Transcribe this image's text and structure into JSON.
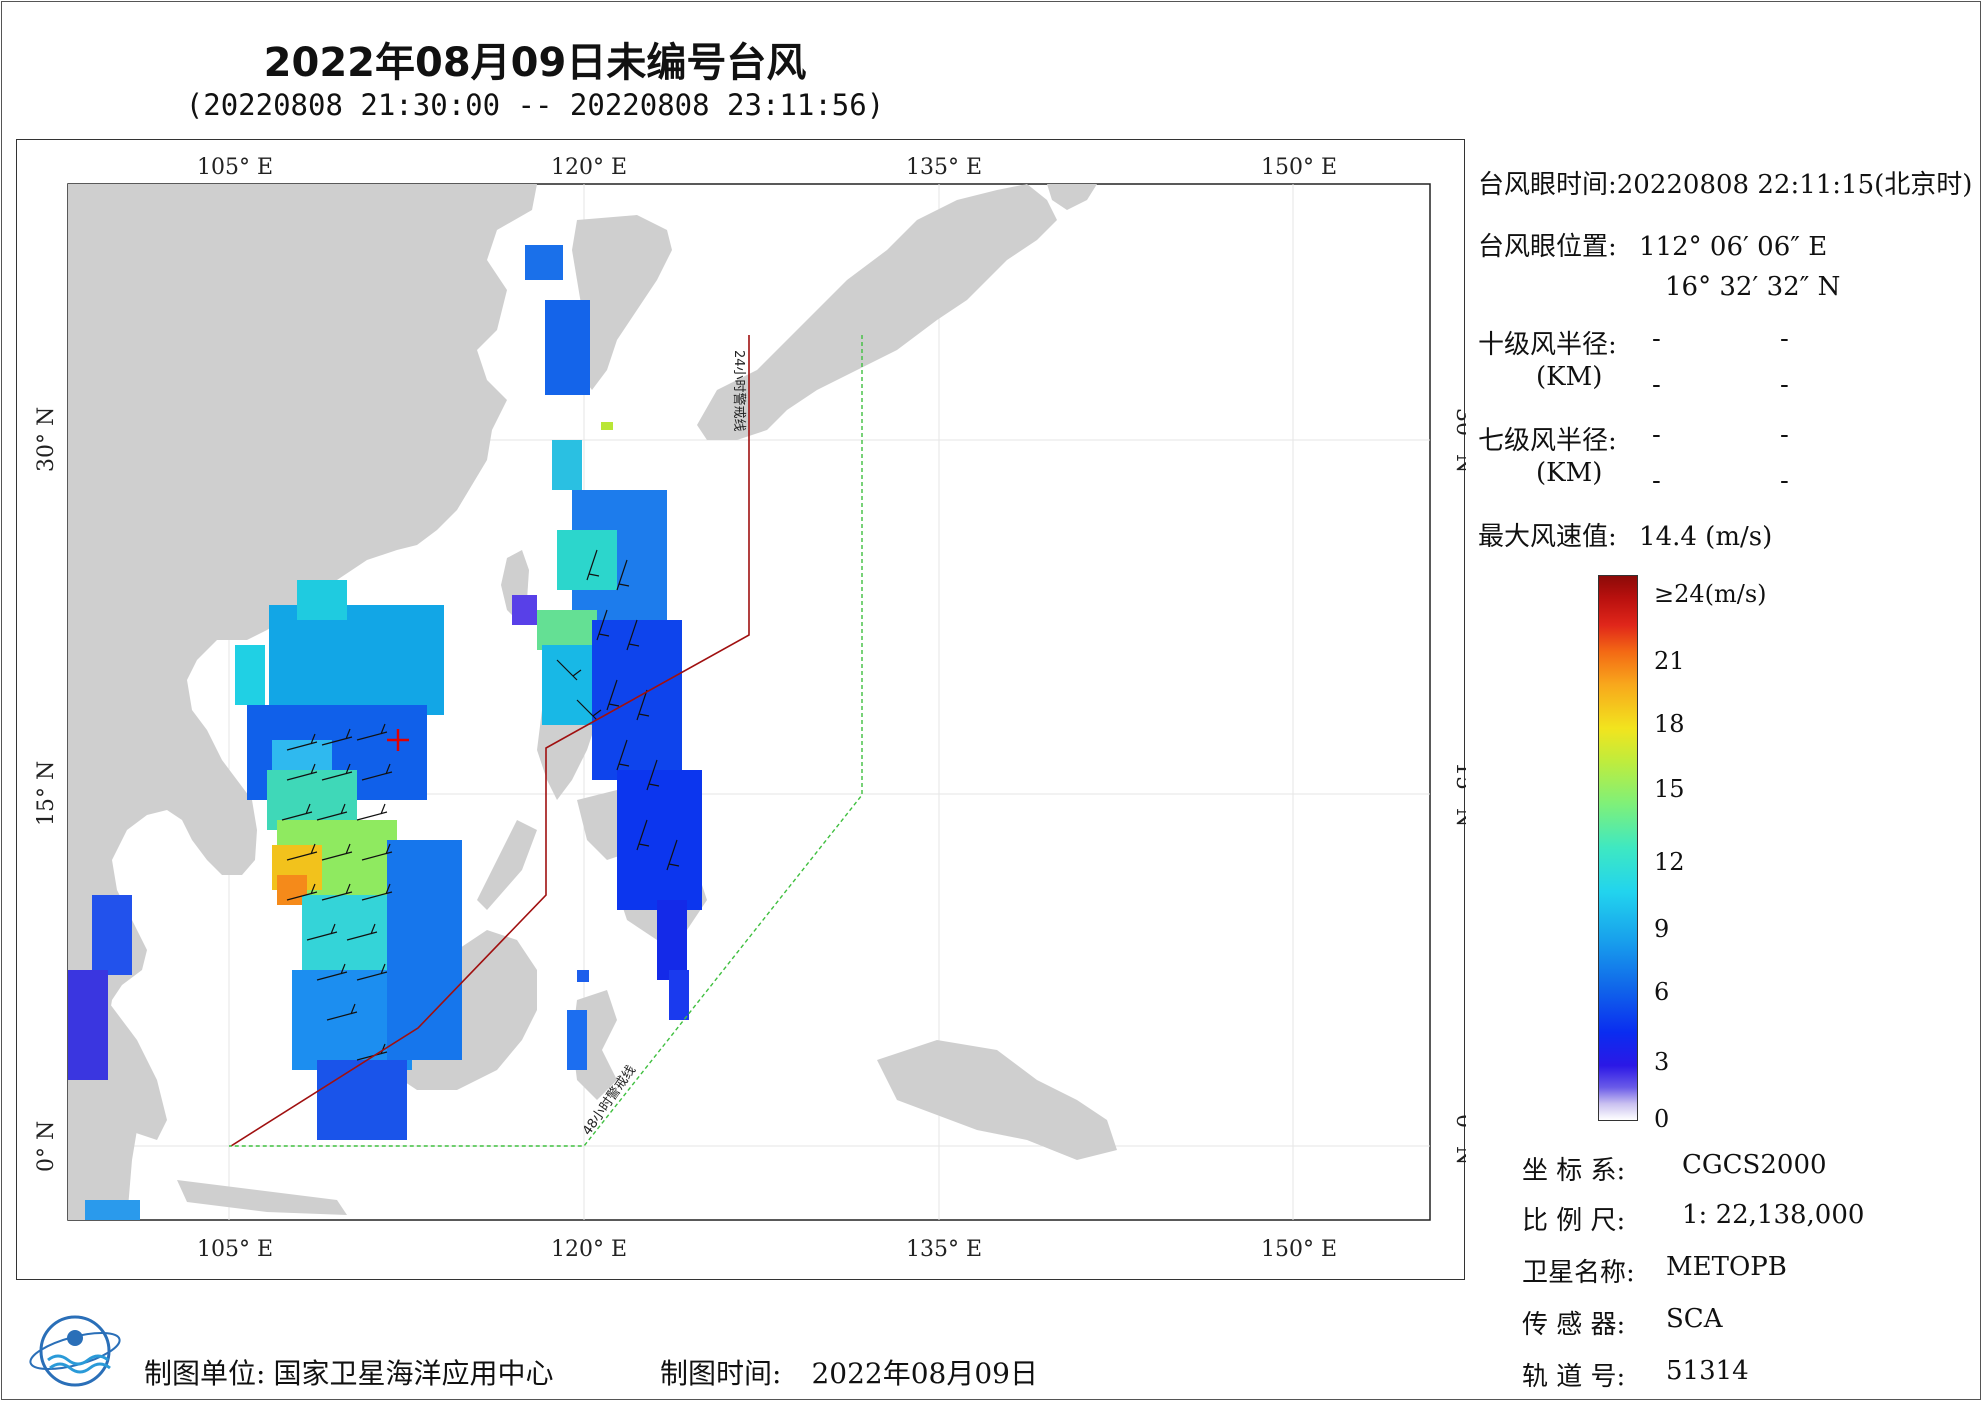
{
  "title": "2022年08月09日未编号台风",
  "subtitle": "(20220808 21:30:00 -- 20220808 23:11:56)",
  "map": {
    "lon_ticks_top": [
      "105° E",
      "120° E",
      "135° E",
      "150° E"
    ],
    "lon_ticks_bottom": [
      "105° E",
      "120° E",
      "135° E",
      "150° E"
    ],
    "lat_ticks_left": [
      "30° N",
      "15° N",
      "0° N"
    ],
    "lat_ticks_right": [
      "30° N",
      "15° N",
      "0° N"
    ],
    "line_24h_label": "24小时警戒线",
    "line_48h_label": "48小时警戒线",
    "colors": {
      "land": "#cfcfcf",
      "sea": "#ffffff",
      "line_24h": "#a01010",
      "line_48h": "#3fbf3f",
      "eye_marker": "#e00000"
    }
  },
  "info": {
    "eye_time_label": "台风眼时间:",
    "eye_time_value": "20220808 22:11:15(北京时)",
    "eye_pos_label": "台风眼位置:",
    "eye_lon": "112° 06′ 06″ E",
    "eye_lat": "16° 32′ 32″ N",
    "r10_label": "十级风半径:",
    "r7_label": "七级风半径:",
    "km_label": "(KM)",
    "dash": "-",
    "max_wind_label": "最大风速值:",
    "max_wind_value": "14.4 (m/s)"
  },
  "colorbar": {
    "ticks": [
      "≥24(m/s)",
      "21",
      "18",
      "15",
      "12",
      "9",
      "6",
      "3",
      "0"
    ]
  },
  "meta": {
    "crs_label": "坐 标 系:",
    "crs_value": "CGCS2000",
    "scale_label": "比 例 尺:",
    "scale_value": "1: 22,138,000",
    "satellite_label": "卫星名称:",
    "satellite_value": "METOPB",
    "sensor_label": "传 感 器:",
    "sensor_value": "SCA",
    "orbit_label": "轨 道 号:",
    "orbit_value": "51314"
  },
  "footer": {
    "maker_label": "制图单位:",
    "maker_value": "国家卫星海洋应用中心",
    "date_label": "制图时间:",
    "date_value": "2022年08月09日"
  }
}
